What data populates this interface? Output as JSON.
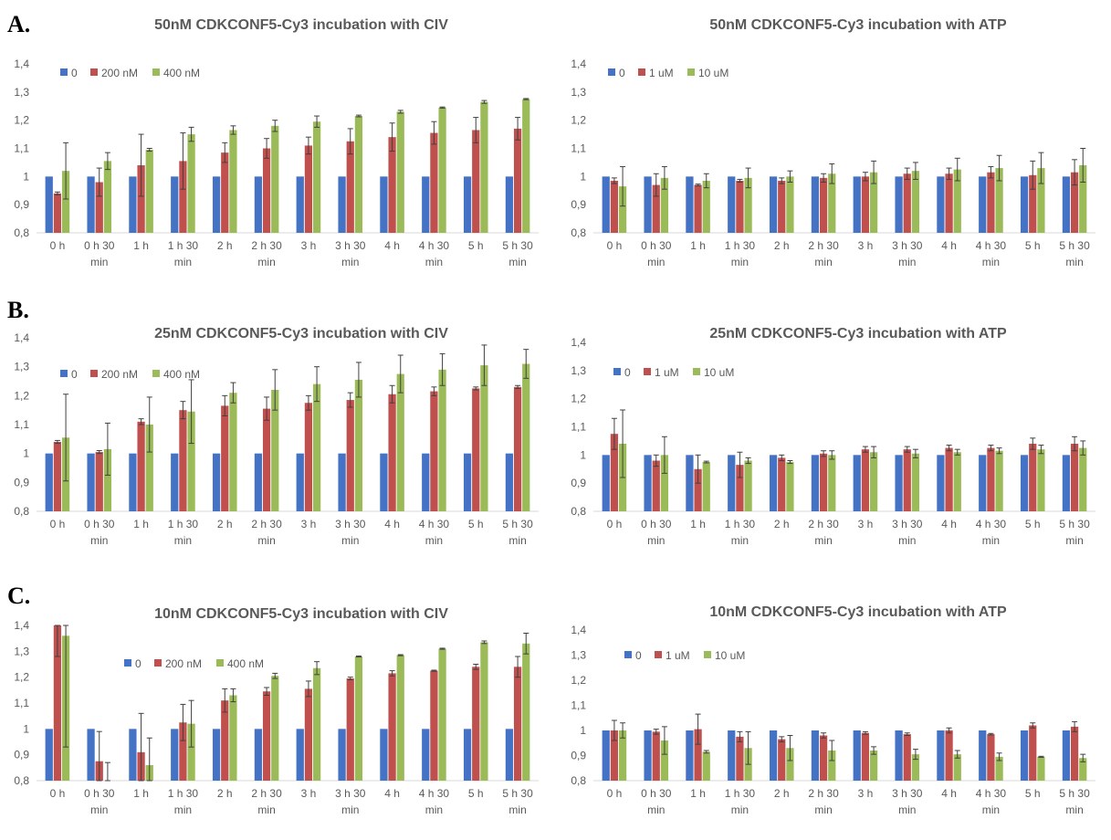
{
  "sections": [
    {
      "label": "A."
    },
    {
      "label": "B."
    },
    {
      "label": "C."
    }
  ],
  "colors": {
    "0": "#4472c4",
    "mid": "#c0504d",
    "high": "#9bbb59",
    "axis": "#d9d9d9",
    "errorbar": "#404040"
  },
  "chart_data": [
    {
      "type": "bar",
      "title": "50nM CDKCONF5-Cy3 incubation with CIV",
      "categories": [
        "0 h",
        "0 h 30 min",
        "1 h",
        "1 h 30 min",
        "2 h",
        "2 h 30 min",
        "3 h",
        "3 h 30 min",
        "4 h",
        "4 h 30 min",
        "5 h",
        "5 h 30 min"
      ],
      "ylim": [
        0.8,
        1.4
      ],
      "yticks": [
        "0,8",
        "0,9",
        "1",
        "1,1",
        "1,2",
        "1,3",
        "1,4"
      ],
      "legend_position": "top-left",
      "series": [
        {
          "name": "0",
          "values": [
            1,
            1,
            1,
            1,
            1,
            1,
            1,
            1,
            1,
            1,
            1,
            1
          ],
          "errors": [
            0,
            0,
            0,
            0,
            0,
            0,
            0,
            0,
            0,
            0,
            0,
            0
          ]
        },
        {
          "name": "200 nM",
          "values": [
            0.94,
            0.98,
            1.04,
            1.055,
            1.085,
            1.1,
            1.11,
            1.125,
            1.14,
            1.155,
            1.165,
            1.17
          ],
          "errors": [
            0.005,
            0.05,
            0.11,
            0.1,
            0.035,
            0.035,
            0.03,
            0.045,
            0.05,
            0.04,
            0.045,
            0.04
          ]
        },
        {
          "name": "400 nM",
          "values": [
            1.02,
            1.055,
            1.095,
            1.15,
            1.165,
            1.18,
            1.195,
            1.215,
            1.23,
            1.245,
            1.265,
            1.275
          ],
          "errors": [
            0.1,
            0.03,
            0.005,
            0.025,
            0.015,
            0.02,
            0.02,
            0.003,
            0.005,
            0.002,
            0.005,
            0.002
          ]
        }
      ]
    },
    {
      "type": "bar",
      "title": "50nM CDKCONF5-Cy3 incubation with ATP",
      "categories": [
        "0 h",
        "0 h 30 min",
        "1 h",
        "1 h 30 min",
        "2 h",
        "2 h 30 min",
        "3 h",
        "3 h 30 min",
        "4 h",
        "4 h 30 min",
        "5 h",
        "5 h 30 min"
      ],
      "ylim": [
        0.8,
        1.4
      ],
      "yticks": [
        "0,8",
        "0,9",
        "1",
        "1,1",
        "1,2",
        "1,3",
        "1,4"
      ],
      "legend_position": "top-left",
      "series": [
        {
          "name": "0",
          "values": [
            1,
            1,
            1,
            1,
            1,
            1,
            1,
            1,
            1,
            1,
            1,
            1
          ],
          "errors": [
            0,
            0,
            0,
            0,
            0,
            0,
            0,
            0,
            0,
            0,
            0,
            0
          ]
        },
        {
          "name": "1 uM",
          "values": [
            0.985,
            0.97,
            0.97,
            0.985,
            0.985,
            0.995,
            1.0,
            1.01,
            1.01,
            1.015,
            1.005,
            1.015
          ],
          "errors": [
            0.01,
            0.04,
            0.003,
            0.005,
            0.01,
            0.015,
            0.015,
            0.02,
            0.02,
            0.02,
            0.05,
            0.045
          ]
        },
        {
          "name": "10 uM",
          "values": [
            0.965,
            0.995,
            0.985,
            0.995,
            1.0,
            1.01,
            1.015,
            1.02,
            1.025,
            1.03,
            1.03,
            1.04
          ],
          "errors": [
            0.07,
            0.04,
            0.025,
            0.035,
            0.02,
            0.035,
            0.04,
            0.03,
            0.04,
            0.045,
            0.055,
            0.06
          ]
        }
      ]
    },
    {
      "type": "bar",
      "title": "25nM CDKCONF5-Cy3 incubation with CIV",
      "categories": [
        "0 h",
        "0 h 30 min",
        "1 h",
        "1 h 30 min",
        "2 h",
        "2 h 30 min",
        "3 h",
        "3 h 30 min",
        "4 h",
        "4 h 30 min",
        "5 h",
        "5 h 30 min"
      ],
      "ylim": [
        0.8,
        1.4
      ],
      "yticks": [
        "0,8",
        "0,9",
        "1",
        "1,1",
        "1,2",
        "1,3",
        "1,4"
      ],
      "legend_position": "top-left",
      "series": [
        {
          "name": "0",
          "values": [
            1,
            1,
            1,
            1,
            1,
            1,
            1,
            1,
            1,
            1,
            1,
            1
          ],
          "errors": [
            0,
            0,
            0,
            0,
            0,
            0,
            0,
            0,
            0,
            0,
            0,
            0
          ]
        },
        {
          "name": "200 nM",
          "values": [
            1.04,
            1.005,
            1.11,
            1.15,
            1.165,
            1.155,
            1.175,
            1.185,
            1.205,
            1.215,
            1.225,
            1.23
          ],
          "errors": [
            0.005,
            0.005,
            0.01,
            0.03,
            0.035,
            0.04,
            0.025,
            0.025,
            0.03,
            0.015,
            0.005,
            0.005
          ]
        },
        {
          "name": "400 nM",
          "values": [
            1.055,
            1.015,
            1.1,
            1.145,
            1.21,
            1.22,
            1.24,
            1.255,
            1.275,
            1.29,
            1.305,
            1.31
          ],
          "errors": [
            0.15,
            0.09,
            0.095,
            0.11,
            0.035,
            0.07,
            0.06,
            0.06,
            0.065,
            0.055,
            0.07,
            0.05
          ]
        }
      ]
    },
    {
      "type": "bar",
      "title": "25nM CDKCONF5-Cy3 incubation with ATP",
      "categories": [
        "0 h",
        "0 h 30 min",
        "1 h",
        "1 h 30 min",
        "2 h",
        "2 h 30 min",
        "3 h",
        "3 h 30 min",
        "4 h",
        "4 h 30 min",
        "5 h",
        "5 h 30 min"
      ],
      "ylim": [
        0.8,
        1.4
      ],
      "yticks": [
        "0,8",
        "0,9",
        "1",
        "1,1",
        "1,2",
        "1,3",
        "1,4"
      ],
      "legend_position": "top-left",
      "series": [
        {
          "name": "0",
          "values": [
            1,
            1,
            1,
            1,
            1,
            1,
            1,
            1,
            1,
            1,
            1,
            1
          ],
          "errors": [
            0,
            0,
            0,
            0,
            0,
            0,
            0,
            0,
            0,
            0,
            0,
            0
          ]
        },
        {
          "name": "1 uM",
          "values": [
            1.075,
            0.98,
            0.95,
            0.965,
            0.99,
            1.005,
            1.02,
            1.02,
            1.025,
            1.025,
            1.04,
            1.04
          ],
          "errors": [
            0.055,
            0.02,
            0.05,
            0.045,
            0.01,
            0.01,
            0.01,
            0.01,
            0.01,
            0.01,
            0.02,
            0.025
          ]
        },
        {
          "name": "10 uM",
          "values": [
            1.04,
            1.0,
            0.975,
            0.98,
            0.975,
            1.0,
            1.01,
            1.005,
            1.01,
            1.015,
            1.02,
            1.025
          ],
          "errors": [
            0.12,
            0.065,
            0.003,
            0.01,
            0.005,
            0.015,
            0.02,
            0.015,
            0.01,
            0.01,
            0.015,
            0.025
          ]
        }
      ]
    },
    {
      "type": "bar",
      "title": "10nM CDKCONF5-Cy3 incubation with CIV",
      "categories": [
        "0 h",
        "0 h 30 min",
        "1 h",
        "1 h 30 min",
        "2 h",
        "2 h 30 min",
        "3 h",
        "3 h 30 min",
        "4 h",
        "4 h 30 min",
        "5 h",
        "5 h 30 min"
      ],
      "ylim": [
        0.8,
        1.4
      ],
      "yticks": [
        "0,8",
        "0,9",
        "1",
        "1,1",
        "1,2",
        "1,3",
        "1,4"
      ],
      "legend_position": "top-left",
      "series": [
        {
          "name": "0",
          "values": [
            1,
            1,
            1,
            1,
            1,
            1,
            1,
            1,
            1,
            1,
            1,
            1
          ],
          "errors": [
            0,
            0,
            0,
            0,
            0,
            0,
            0,
            0,
            0,
            0,
            0,
            0
          ]
        },
        {
          "name": "200 nM",
          "values": [
            1.4,
            0.875,
            0.91,
            1.025,
            1.11,
            1.145,
            1.155,
            1.195,
            1.215,
            1.225,
            1.24,
            1.24
          ],
          "errors": [
            0.12,
            0.115,
            0.15,
            0.07,
            0.045,
            0.015,
            0.03,
            0.005,
            0.01,
            0.002,
            0.01,
            0.04
          ]
        },
        {
          "name": "400 nM",
          "values": [
            1.36,
            0.8,
            0.86,
            1.02,
            1.13,
            1.205,
            1.235,
            1.28,
            1.285,
            1.31,
            1.335,
            1.33
          ],
          "errors": [
            0.43,
            0.07,
            0.105,
            0.09,
            0.025,
            0.01,
            0.025,
            0.002,
            0.002,
            0.002,
            0.005,
            0.04
          ]
        }
      ]
    },
    {
      "type": "bar",
      "title": "10nM CDKCONF5-Cy3 incubation with ATP",
      "categories": [
        "0 h",
        "0 h 30 min",
        "1 h",
        "1 h 30 min",
        "2 h",
        "2 h 30 min",
        "3 h",
        "3 h 30 min",
        "4 h",
        "4 h 30 min",
        "5 h",
        "5 h 30 min"
      ],
      "ylim": [
        0.8,
        1.4
      ],
      "yticks": [
        "0,8",
        "0,9",
        "1",
        "1,1",
        "1,2",
        "1,3",
        "1,4"
      ],
      "legend_position": "top-left",
      "series": [
        {
          "name": "0",
          "values": [
            1,
            1,
            1,
            1,
            1,
            1,
            1,
            1,
            1,
            1,
            1,
            1
          ],
          "errors": [
            0,
            0,
            0,
            0,
            0,
            0,
            0,
            0,
            0,
            0,
            0,
            0
          ]
        },
        {
          "name": "1 uM",
          "values": [
            1.0,
            0.995,
            1.005,
            0.975,
            0.965,
            0.98,
            0.99,
            0.985,
            1.0,
            0.985,
            1.02,
            1.015
          ],
          "errors": [
            0.04,
            0.01,
            0.06,
            0.02,
            0.01,
            0.01,
            0.005,
            0.005,
            0.01,
            0.003,
            0.01,
            0.02
          ]
        },
        {
          "name": "10 uM",
          "values": [
            1.0,
            0.96,
            0.915,
            0.93,
            0.93,
            0.92,
            0.92,
            0.905,
            0.905,
            0.895,
            0.895,
            0.89
          ],
          "errors": [
            0.03,
            0.055,
            0.005,
            0.065,
            0.05,
            0.04,
            0.015,
            0.02,
            0.015,
            0.015,
            0.002,
            0.015
          ]
        }
      ]
    }
  ]
}
